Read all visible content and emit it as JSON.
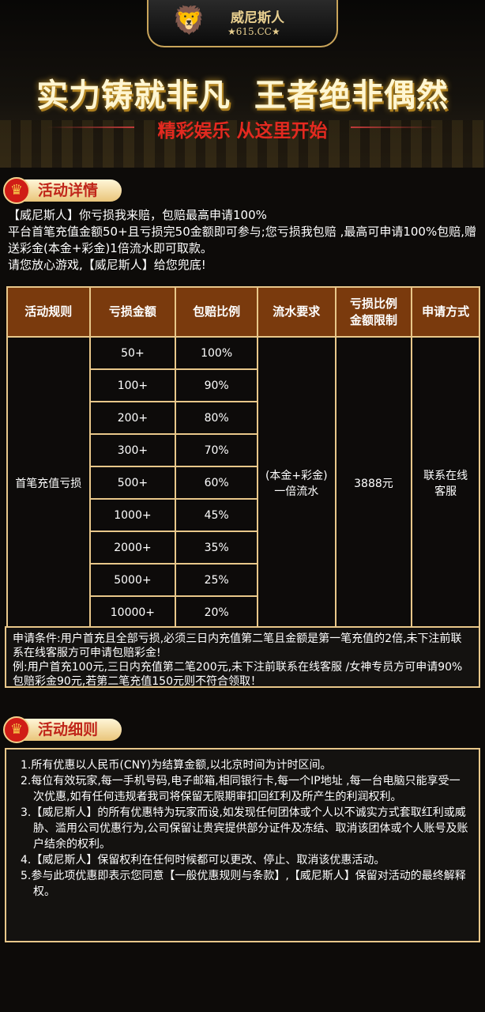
{
  "banner": {
    "brand_name": "威尼斯人",
    "brand_url": "★615.CC★",
    "slogan": "实力铸就非凡  王者绝非偶然",
    "subtitle": "精彩娱乐 从这里开始",
    "accent": "#e32a20"
  },
  "details": {
    "title": "活动详情",
    "lines": [
      "【威尼斯人】你亏损我来赔，包赔最高申请100%",
      "平台首笔充值金额50+且亏损完50金额即可参与;您亏损我包赔 ,最高可申请100%包赔,赠送彩金(本金+彩金)1倍流水即可取款。",
      "请您放心游戏,【威尼斯人】给您兜底!"
    ]
  },
  "table": {
    "headers": [
      "活动规则",
      "亏损金额",
      "包赔比例",
      "流水要求",
      "亏损比例\n金额限制",
      "申请方式"
    ],
    "rule": "首笔充值亏损",
    "turnover": "(本金+彩金)\n一倍流水",
    "limit": "3888元",
    "method": "联系在线\n客服",
    "rows": [
      [
        "50+",
        "100%"
      ],
      [
        "100+",
        "90%"
      ],
      [
        "200+",
        "80%"
      ],
      [
        "300+",
        "70%"
      ],
      [
        "500+",
        "60%"
      ],
      [
        "1000+",
        "45%"
      ],
      [
        "2000+",
        "35%"
      ],
      [
        "5000+",
        "25%"
      ],
      [
        "10000+",
        "20%"
      ]
    ]
  },
  "conditions": [
    "申请条件:用户首充且全部亏损,必须三日内充值第二笔且金额是第一笔充值的2倍,未下注前联系在线客服方可申请包赔彩金!",
    "例:用户首充100元,三日内充值第二笔200元,未下注前联系在线客服 /女神专员方可申请90%包赔彩金90元,若第二笔充值150元则不符合领取！"
  ],
  "rules": {
    "title": "活动细则",
    "items": [
      "1.所有优惠以人民币(CNY)为结算金额,以北京时间为计时区间。",
      "2.每位有效玩家,每一手机号码,电子邮箱,相同银行卡,每一个IP地址 ,每一台电脑只能享受一次优惠,如有任何违规者我司将保留无限期审扣回红利及所产生的利润权利。",
      "3.【威尼斯人】的所有优惠特为玩家而设,如发现任何团体或个人以不诚实方式套取红利或威胁、滥用公司优惠行为,公司保留让贵宾提供部分证件及冻结、取消该团体或个人账号及账户结余的权利。",
      "4.【威尼斯人】保留权利在任何时候都可以更改、停止、取消该优惠活动。",
      "5.参与此项优惠即表示您同意【一般优惠规则与条款】,【威尼斯人】保留对活动的最终解释权。"
    ]
  }
}
